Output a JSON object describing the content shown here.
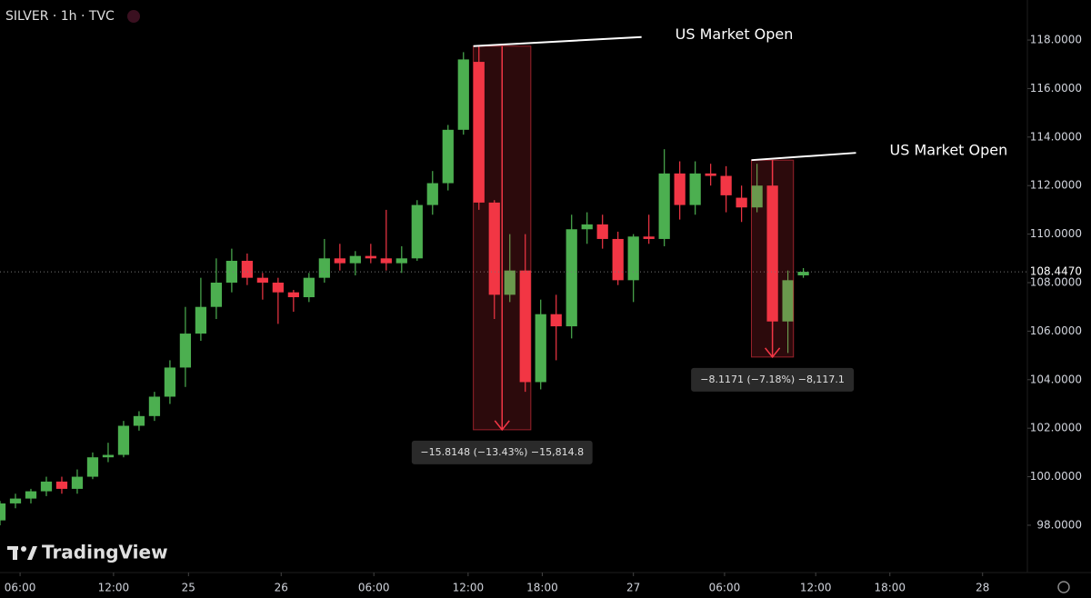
{
  "chart_data": {
    "type": "candlestick",
    "title": "SILVER · 1h · TVC",
    "logo": "TradingView",
    "x": [
      0,
      1,
      2,
      3,
      4,
      5,
      6,
      7,
      8,
      9,
      10,
      11,
      12,
      13,
      14,
      15,
      16,
      17,
      18,
      19,
      20,
      21,
      22,
      23,
      24,
      25,
      26,
      27,
      28,
      29,
      30,
      31,
      32,
      33,
      34,
      35,
      36,
      37,
      38,
      39,
      40,
      41,
      42,
      43,
      44,
      45,
      46,
      47,
      48,
      49,
      50,
      51,
      52
    ],
    "open": [
      98.2,
      98.9,
      99.1,
      99.4,
      99.8,
      99.5,
      100.0,
      100.8,
      100.9,
      102.1,
      102.5,
      103.3,
      104.5,
      105.9,
      107.0,
      108.0,
      108.9,
      108.2,
      108.0,
      107.6,
      107.4,
      108.2,
      109.0,
      108.8,
      109.1,
      109.0,
      108.8,
      109.0,
      111.2,
      112.1,
      114.3,
      117.1,
      111.3,
      107.5,
      108.5,
      103.9,
      106.7,
      106.2,
      110.2,
      110.4,
      109.8,
      108.1,
      109.9,
      109.8,
      112.5,
      111.2,
      112.5,
      112.4,
      111.5,
      111.1,
      112.0,
      106.4,
      108.3
    ],
    "high": [
      99.0,
      99.3,
      99.5,
      100.0,
      100.0,
      100.3,
      101.0,
      101.4,
      102.3,
      102.7,
      103.5,
      104.8,
      107.0,
      108.2,
      109.0,
      109.4,
      109.2,
      108.4,
      108.2,
      107.7,
      108.4,
      109.8,
      109.6,
      109.3,
      109.6,
      111.0,
      109.5,
      111.4,
      112.6,
      114.5,
      117.5,
      117.75,
      111.4,
      110.0,
      110.0,
      107.3,
      107.5,
      110.8,
      110.9,
      110.8,
      110.1,
      110.0,
      110.8,
      113.5,
      113.0,
      113.0,
      112.9,
      112.8,
      112.0,
      112.9,
      112.0,
      108.5,
      108.6
    ],
    "low": [
      98.0,
      98.7,
      98.9,
      99.2,
      99.3,
      99.3,
      99.9,
      100.6,
      100.8,
      101.9,
      102.3,
      103.0,
      103.7,
      105.6,
      106.5,
      107.6,
      107.9,
      107.3,
      106.3,
      106.8,
      107.2,
      108.0,
      108.5,
      108.3,
      108.8,
      108.5,
      108.4,
      108.9,
      110.8,
      111.8,
      114.1,
      111.0,
      106.5,
      107.2,
      103.5,
      103.6,
      104.8,
      105.7,
      109.6,
      109.4,
      107.9,
      107.2,
      109.6,
      109.5,
      110.6,
      110.8,
      112.0,
      110.9,
      110.5,
      110.9,
      106.0,
      105.1,
      108.2
    ],
    "close": [
      98.9,
      99.1,
      99.4,
      99.8,
      99.5,
      100.0,
      100.8,
      100.9,
      102.1,
      102.5,
      103.3,
      104.5,
      105.9,
      107.0,
      108.0,
      108.9,
      108.2,
      108.0,
      107.6,
      107.4,
      108.2,
      109.0,
      108.8,
      109.1,
      109.0,
      108.8,
      109.0,
      111.2,
      112.1,
      114.3,
      117.2,
      111.3,
      107.5,
      108.5,
      103.9,
      106.7,
      106.2,
      110.2,
      110.4,
      109.8,
      108.1,
      109.9,
      109.8,
      112.5,
      111.2,
      112.5,
      112.4,
      111.6,
      111.1,
      112.0,
      106.4,
      108.1,
      108.447
    ],
    "up_color": "#4caf50",
    "down_color": "#f23645",
    "xlim": [
      0,
      66.5
    ],
    "xticks": [
      {
        "value": 1.3,
        "label": "06:00"
      },
      {
        "value": 7.35,
        "label": "12:00"
      },
      {
        "value": 12.2,
        "label": "25"
      },
      {
        "value": 18.2,
        "label": "26"
      },
      {
        "value": 24.2,
        "label": "06:00"
      },
      {
        "value": 30.3,
        "label": "12:00"
      },
      {
        "value": 35.1,
        "label": "18:00"
      },
      {
        "value": 41,
        "label": "27"
      },
      {
        "value": 46.9,
        "label": "06:00"
      },
      {
        "value": 52.8,
        "label": "12:00"
      },
      {
        "value": 57.6,
        "label": "18:00"
      },
      {
        "value": 63.6,
        "label": "28"
      }
    ],
    "ylim": [
      96.05,
      119.65
    ],
    "yticks": [
      {
        "value": 98,
        "label": "98.0000"
      },
      {
        "value": 100,
        "label": "100.0000"
      },
      {
        "value": 102,
        "label": "102.0000"
      },
      {
        "value": 104,
        "label": "104.0000"
      },
      {
        "value": 106,
        "label": "106.0000"
      },
      {
        "value": 108,
        "label": "108.0000"
      },
      {
        "value": 110,
        "label": "110.0000"
      },
      {
        "value": 112,
        "label": "112.0000"
      },
      {
        "value": 114,
        "label": "114.0000"
      },
      {
        "value": 116,
        "label": "116.0000"
      },
      {
        "value": 118,
        "label": "118.0000"
      }
    ],
    "last_price": {
      "value": 108.447,
      "label": "108.4470"
    },
    "measures": [
      {
        "from_x": 31,
        "to_x": 34,
        "from": 117.75,
        "to": 101.9352,
        "label": "−15.8148 (−13.43%) −15,814.8",
        "note": "US Market Open"
      },
      {
        "from_x": 49,
        "to_x": 51,
        "from": 113.05,
        "to": 104.9329,
        "label": "−8.1171 (−7.18%) −8,117.1",
        "note": "US Market Open"
      }
    ]
  }
}
